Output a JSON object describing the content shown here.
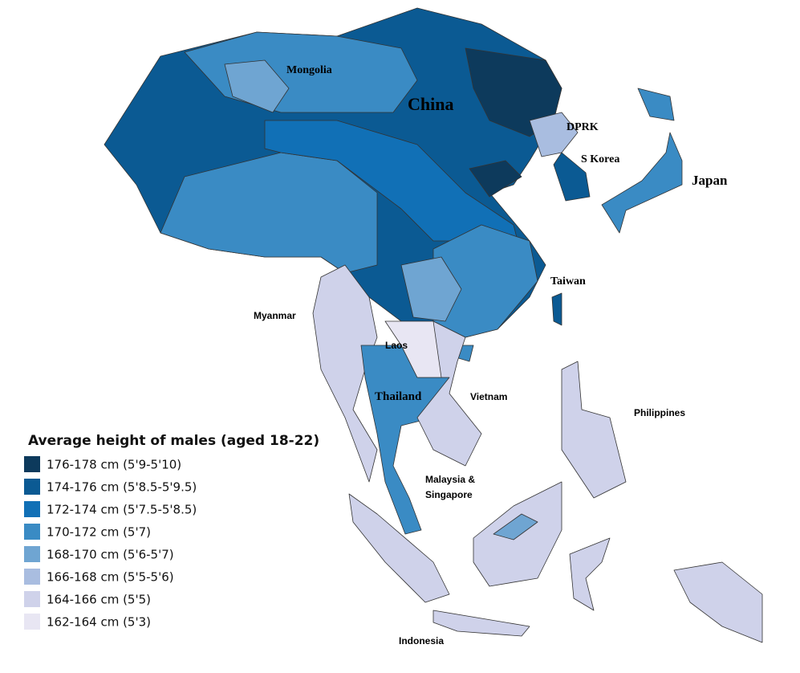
{
  "map": {
    "legend": {
      "title": "Average height of males (aged 18-22)",
      "items": [
        {
          "label": "176-178 cm (5'9-5'10)",
          "color": "#0d3a5c"
        },
        {
          "label": "174-176 cm (5'8.5-5'9.5)",
          "color": "#0b5a93"
        },
        {
          "label": "172-174 cm (5'7.5-5'8.5)",
          "color": "#1170b6"
        },
        {
          "label": "170-172 cm (5'7)",
          "color": "#3a8bc4"
        },
        {
          "label": "168-170 cm (5'6-5'7)",
          "color": "#6fa5d2"
        },
        {
          "label": "166-168 cm (5'5-5'6)",
          "color": "#a9bde0"
        },
        {
          "label": "164-166 cm (5'5)",
          "color": "#cfd2ea"
        },
        {
          "label": "162-164 cm (5'3)",
          "color": "#e8e6f3"
        }
      ]
    },
    "labels": [
      "Mongolia",
      "China",
      "DPRK",
      "S Korea",
      "Japan",
      "Taiwan",
      "Myanmar",
      "Laos",
      "Thailand",
      "Vietnam",
      "Philippines",
      "Malaysia &",
      "Singapore",
      "Indonesia"
    ]
  }
}
